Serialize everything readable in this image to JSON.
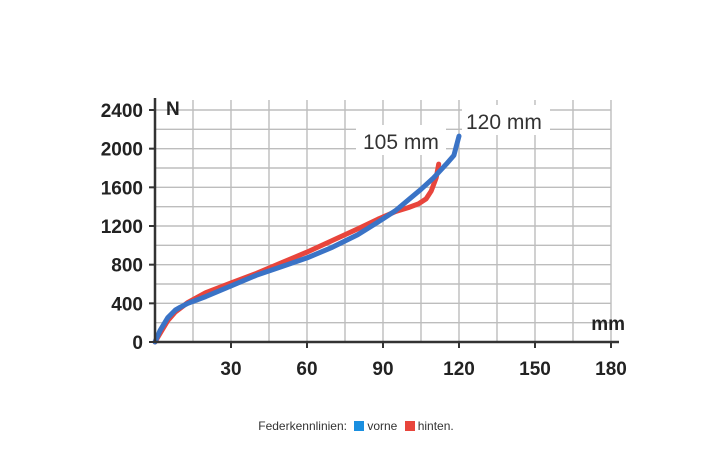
{
  "chart_data": {
    "type": "line",
    "xunit": "mm",
    "yunit": "N",
    "xlim": [
      0,
      180
    ],
    "ylim": [
      0,
      2400
    ],
    "xticks": [
      30,
      60,
      90,
      120,
      150,
      180
    ],
    "yticks": [
      0,
      400,
      800,
      1200,
      1600,
      2000,
      2400
    ],
    "grid": true,
    "colors": {
      "grid": "#bdbdbd",
      "axis": "#333333"
    },
    "series": [
      {
        "name": "vorne",
        "color": "#3a73c6",
        "x": [
          0,
          2,
          5,
          8,
          10,
          13,
          20,
          30,
          40,
          50,
          60,
          70,
          80,
          88,
          95,
          100,
          105,
          110,
          115,
          118,
          120
        ],
        "y": [
          0,
          120,
          250,
          330,
          360,
          400,
          470,
          580,
          690,
          780,
          870,
          980,
          1110,
          1240,
          1360,
          1470,
          1580,
          1700,
          1840,
          1930,
          2130
        ]
      },
      {
        "name": "hinten.",
        "color": "#e8453c",
        "x": [
          0,
          2,
          5,
          8,
          10,
          13,
          20,
          30,
          40,
          50,
          60,
          70,
          80,
          88,
          95,
          100,
          104,
          107,
          109,
          111,
          112
        ],
        "y": [
          0,
          90,
          220,
          310,
          350,
          410,
          510,
          610,
          710,
          820,
          930,
          1050,
          1170,
          1270,
          1350,
          1390,
          1430,
          1480,
          1560,
          1700,
          1840
        ]
      }
    ],
    "annotations": [
      {
        "text": "105 mm"
      },
      {
        "text": "120 mm"
      }
    ]
  },
  "legend": {
    "prefix": "Federkennlinien:",
    "items": [
      {
        "label": "vorne",
        "color": "#1a8fe0"
      },
      {
        "label": "hinten.",
        "color": "#e8453c"
      }
    ]
  }
}
